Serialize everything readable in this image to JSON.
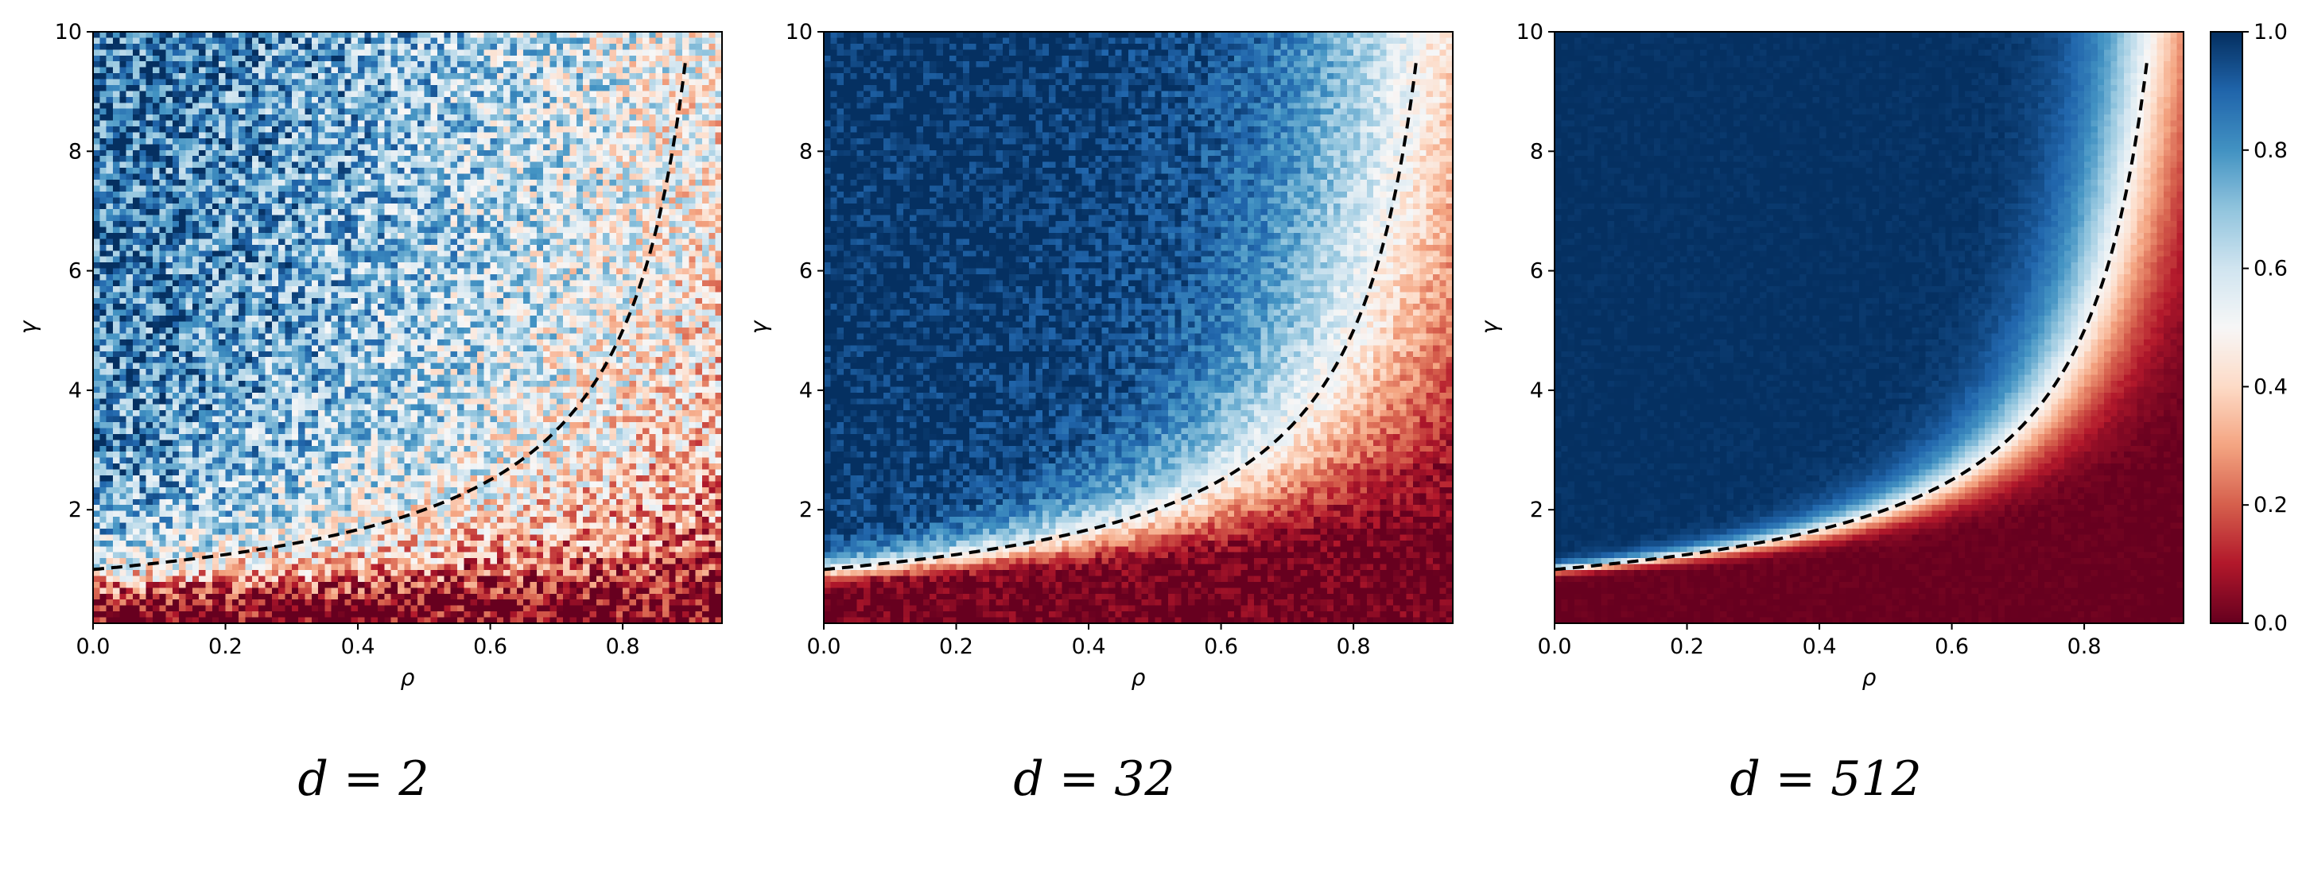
{
  "chart_data": [
    {
      "type": "heatmap",
      "caption": "d = 2",
      "d": 2,
      "noise": 0.85,
      "sharpness": 0.45,
      "xlabel": "ρ",
      "ylabel": "γ",
      "xlim": [
        0.0,
        0.95
      ],
      "ylim": [
        0.1,
        10.0
      ],
      "xticks": [
        "0.0",
        "0.2",
        "0.4",
        "0.6",
        "0.8"
      ],
      "yticks": [
        "2",
        "4",
        "6",
        "8",
        "10"
      ],
      "boundary": {
        "style": "dashed",
        "color": "#000000",
        "formula": "γ = 1/(1-ρ)",
        "rho_end": 0.9
      }
    },
    {
      "type": "heatmap",
      "caption": "d = 32",
      "d": 32,
      "noise": 0.3,
      "sharpness": 0.12,
      "xlabel": "ρ",
      "ylabel": "γ",
      "xlim": [
        0.0,
        0.95
      ],
      "ylim": [
        0.1,
        10.0
      ],
      "xticks": [
        "0.0",
        "0.2",
        "0.4",
        "0.6",
        "0.8"
      ],
      "yticks": [
        "2",
        "4",
        "6",
        "8",
        "10"
      ],
      "boundary": {
        "style": "dashed",
        "color": "#000000",
        "formula": "γ = 1/(1-ρ)",
        "rho_end": 0.9
      }
    },
    {
      "type": "heatmap",
      "caption": "d = 512",
      "d": 512,
      "noise": 0.06,
      "sharpness": 0.05,
      "xlabel": "ρ",
      "ylabel": "γ",
      "xlim": [
        0.0,
        0.95
      ],
      "ylim": [
        0.1,
        10.0
      ],
      "xticks": [
        "0.0",
        "0.2",
        "0.4",
        "0.6",
        "0.8"
      ],
      "yticks": [
        "2",
        "4",
        "6",
        "8",
        "10"
      ],
      "boundary": {
        "style": "dashed",
        "color": "#000000",
        "formula": "γ = 1/(1-ρ)",
        "rho_end": 0.9
      }
    }
  ],
  "colorbar": {
    "colormap": "RdBu",
    "range": [
      0.0,
      1.0
    ],
    "ticks": [
      "0.0",
      "0.2",
      "0.4",
      "0.6",
      "0.8",
      "1.0"
    ],
    "colors": [
      "#67001f",
      "#b2182b",
      "#d6604d",
      "#f4a582",
      "#fddbc7",
      "#f7f7f7",
      "#d1e5f0",
      "#92c5de",
      "#4393c3",
      "#2166ac",
      "#053061"
    ]
  }
}
